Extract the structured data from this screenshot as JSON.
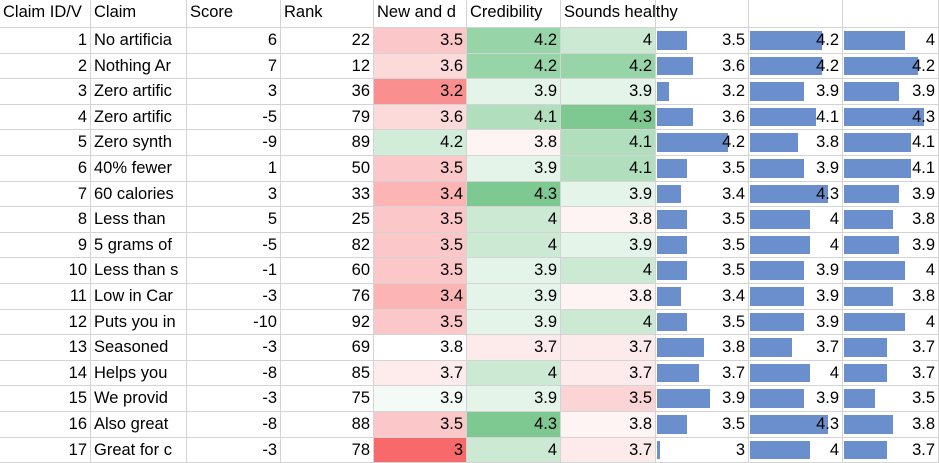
{
  "headers": [
    "Claim ID/V",
    "Claim",
    "Score",
    "Rank",
    "New and d",
    "Credibility",
    "Sounds healthy",
    "",
    "",
    ""
  ],
  "bar_range": {
    "min": 3.0,
    "max": 4.5
  },
  "rows": [
    {
      "id": "1",
      "claim": "No artificia",
      "score": "6",
      "rank": "22",
      "new": "3.5",
      "cred": "4.2",
      "healthy": "4",
      "b1": "3.5",
      "b2": "4.2",
      "b3": "4"
    },
    {
      "id": "2",
      "claim": "Nothing Ar",
      "score": "7",
      "rank": "12",
      "new": "3.6",
      "cred": "4.2",
      "healthy": "4.2",
      "b1": "3.6",
      "b2": "4.2",
      "b3": "4.2"
    },
    {
      "id": "3",
      "claim": "Zero artific",
      "score": "3",
      "rank": "36",
      "new": "3.2",
      "cred": "3.9",
      "healthy": "3.9",
      "b1": "3.2",
      "b2": "3.9",
      "b3": "3.9"
    },
    {
      "id": "4",
      "claim": "Zero artific",
      "score": "-5",
      "rank": "79",
      "new": "3.6",
      "cred": "4.1",
      "healthy": "4.3",
      "b1": "3.6",
      "b2": "4.1",
      "b3": "4.3"
    },
    {
      "id": "5",
      "claim": "Zero synth",
      "score": "-9",
      "rank": "89",
      "new": "4.2",
      "cred": "3.8",
      "healthy": "4.1",
      "b1": "4.2",
      "b2": "3.8",
      "b3": "4.1"
    },
    {
      "id": "6",
      "claim": "40% fewer",
      "score": "1",
      "rank": "50",
      "new": "3.5",
      "cred": "3.9",
      "healthy": "4.1",
      "b1": "3.5",
      "b2": "3.9",
      "b3": "4.1"
    },
    {
      "id": "7",
      "claim": "60 calories",
      "score": "3",
      "rank": "33",
      "new": "3.4",
      "cred": "4.3",
      "healthy": "3.9",
      "b1": "3.4",
      "b2": "4.3",
      "b3": "3.9"
    },
    {
      "id": "8",
      "claim": "Less than",
      "score": "5",
      "rank": "25",
      "new": "3.5",
      "cred": "4",
      "healthy": "3.8",
      "b1": "3.5",
      "b2": "4",
      "b3": "3.8"
    },
    {
      "id": "9",
      "claim": "5 grams of",
      "score": "-5",
      "rank": "82",
      "new": "3.5",
      "cred": "4",
      "healthy": "3.9",
      "b1": "3.5",
      "b2": "4",
      "b3": "3.9"
    },
    {
      "id": "10",
      "claim": "Less than s",
      "score": "-1",
      "rank": "60",
      "new": "3.5",
      "cred": "3.9",
      "healthy": "4",
      "b1": "3.5",
      "b2": "3.9",
      "b3": "4"
    },
    {
      "id": "11",
      "claim": "Low in Car",
      "score": "-3",
      "rank": "76",
      "new": "3.4",
      "cred": "3.9",
      "healthy": "3.8",
      "b1": "3.4",
      "b2": "3.9",
      "b3": "3.8"
    },
    {
      "id": "12",
      "claim": "Puts you in",
      "score": "-10",
      "rank": "92",
      "new": "3.5",
      "cred": "3.9",
      "healthy": "4",
      "b1": "3.5",
      "b2": "3.9",
      "b3": "4"
    },
    {
      "id": "13",
      "claim": "Seasoned",
      "score": "-3",
      "rank": "69",
      "new": "3.8",
      "cred": "3.7",
      "healthy": "3.7",
      "b1": "3.8",
      "b2": "3.7",
      "b3": "3.7"
    },
    {
      "id": "14",
      "claim": "Helps you",
      "score": "-8",
      "rank": "85",
      "new": "3.7",
      "cred": "4",
      "healthy": "3.7",
      "b1": "3.7",
      "b2": "4",
      "b3": "3.7"
    },
    {
      "id": "15",
      "claim": "We provid",
      "score": "-3",
      "rank": "75",
      "new": "3.9",
      "cred": "3.9",
      "healthy": "3.5",
      "b1": "3.9",
      "b2": "3.9",
      "b3": "3.5"
    },
    {
      "id": "16",
      "claim": "Also great",
      "score": "-8",
      "rank": "88",
      "new": "3.5",
      "cred": "4.3",
      "healthy": "3.8",
      "b1": "3.5",
      "b2": "4.3",
      "b3": "3.8"
    },
    {
      "id": "17",
      "claim": "Great for c",
      "score": "-3",
      "rank": "78",
      "new": "3",
      "cred": "4",
      "healthy": "3.7",
      "b1": "3",
      "b2": "4",
      "b3": "3.7"
    }
  ],
  "colors": {
    "bar": "#6a8fcc",
    "red_strong": "#f8696b",
    "green_strong": "#63be7b",
    "neutral": "#ffffff"
  }
}
